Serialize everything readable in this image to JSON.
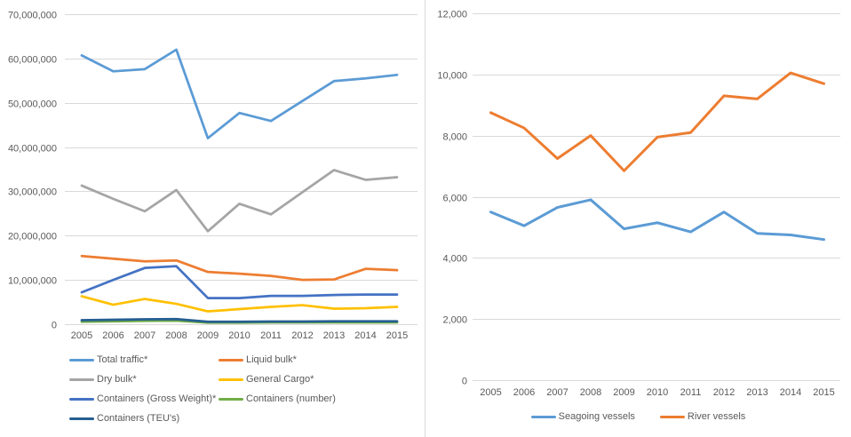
{
  "panel": {
    "background_color": "#ffffff",
    "gridline_color": "#d9d9d9",
    "axis_text_color": "#595959",
    "divider_color": "#d9d9d9"
  },
  "chart_data": [
    {
      "id": "traffic",
      "type": "line",
      "title": "",
      "xlabel": "",
      "ylabel": "",
      "x_labels": [
        "2005",
        "2006",
        "2007",
        "2008",
        "2009",
        "2010",
        "2011",
        "2012",
        "2013",
        "2014",
        "2015"
      ],
      "ylim": [
        0,
        70000000
      ],
      "ytick_step": 10000000,
      "grid": true,
      "legend_position": "bottom-left-two-columns",
      "series": [
        {
          "name": "Total traffic*",
          "color": "#5B9BD5",
          "values": [
            60700000,
            57100000,
            57600000,
            62000000,
            42000000,
            47700000,
            45900000,
            50400000,
            54900000,
            55500000,
            56300000
          ]
        },
        {
          "name": "Liquid bulk*",
          "color": "#ED7D31",
          "values": [
            15400000,
            14800000,
            14200000,
            14400000,
            11800000,
            11400000,
            10900000,
            10000000,
            10100000,
            12500000,
            12200000
          ]
        },
        {
          "name": "Dry bulk*",
          "color": "#A5A5A5",
          "values": [
            31300000,
            28300000,
            25500000,
            30300000,
            21000000,
            27200000,
            24800000,
            29800000,
            34800000,
            32600000,
            33200000
          ]
        },
        {
          "name": "General Cargo*",
          "color": "#FFC000",
          "values": [
            6300000,
            4400000,
            5700000,
            4600000,
            2900000,
            3400000,
            3900000,
            4300000,
            3500000,
            3600000,
            3900000
          ]
        },
        {
          "name": "Containers (Gross Weight)*",
          "color": "#4472C4",
          "values": [
            7200000,
            10000000,
            12700000,
            13100000,
            5900000,
            5900000,
            6400000,
            6400000,
            6600000,
            6700000,
            6700000
          ]
        },
        {
          "name": "Containers (number)",
          "color": "#70AD47",
          "values": [
            550000,
            650000,
            750000,
            800000,
            350000,
            350000,
            400000,
            400000,
            400000,
            400000,
            400000
          ]
        },
        {
          "name": "Containers (TEU's)",
          "color": "#255E91",
          "values": [
            900000,
            1000000,
            1100000,
            1150000,
            550000,
            550000,
            600000,
            600000,
            650000,
            650000,
            650000
          ]
        }
      ]
    },
    {
      "id": "vessels",
      "type": "line",
      "title": "",
      "xlabel": "",
      "ylabel": "",
      "x_labels": [
        "2005",
        "2006",
        "2007",
        "2008",
        "2009",
        "2010",
        "2011",
        "2012",
        "2013",
        "2014",
        "2015"
      ],
      "ylim": [
        0,
        12000
      ],
      "ytick_step": 2000,
      "grid": true,
      "legend_position": "bottom-center",
      "series": [
        {
          "name": "Seagoing vessels",
          "color": "#5B9BD5",
          "values": [
            5500,
            5050,
            5650,
            5900,
            4950,
            5150,
            4850,
            5500,
            4800,
            4750,
            4600
          ]
        },
        {
          "name": "River vessels",
          "color": "#ED7D31",
          "values": [
            8750,
            8250,
            7250,
            8000,
            6850,
            7950,
            8100,
            9300,
            9200,
            10050,
            9700
          ]
        }
      ]
    }
  ]
}
